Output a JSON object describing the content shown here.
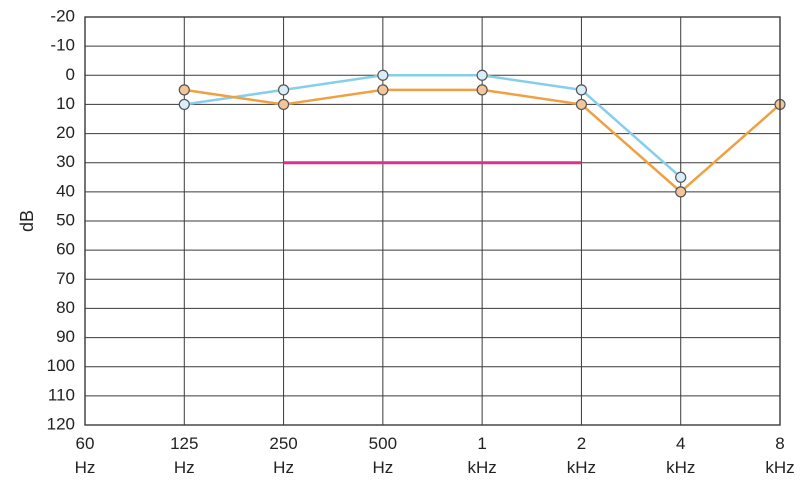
{
  "chart_data": {
    "type": "line",
    "ylabel": "dB",
    "ylim": [
      -20,
      120
    ],
    "y_inverted": true,
    "y_ticks": [
      "-20",
      "-10",
      "0",
      "10",
      "20",
      "30",
      "40",
      "50",
      "60",
      "70",
      "80",
      "90",
      "100",
      "110",
      "120"
    ],
    "categories": [
      {
        "line1": "60",
        "line2": "Hz"
      },
      {
        "line1": "125",
        "line2": "Hz"
      },
      {
        "line1": "250",
        "line2": "Hz"
      },
      {
        "line1": "500",
        "line2": "Hz"
      },
      {
        "line1": "1",
        "line2": "kHz"
      },
      {
        "line1": "2",
        "line2": "kHz"
      },
      {
        "line1": "4",
        "line2": "kHz"
      },
      {
        "line1": "8",
        "line2": "kHz"
      }
    ],
    "grid": true,
    "series": [
      {
        "color": "#87ceeb",
        "marker_fill": "#d8eef8",
        "values": [
          null,
          10,
          5,
          0,
          0,
          5,
          35,
          null
        ]
      },
      {
        "color": "#f0a040",
        "marker_fill": "#f3c69a",
        "values": [
          null,
          5,
          10,
          5,
          5,
          10,
          40,
          10
        ]
      }
    ],
    "reference_line": {
      "color": "#e0308c",
      "from_index": 2,
      "to_index": 5,
      "value": 30
    }
  }
}
